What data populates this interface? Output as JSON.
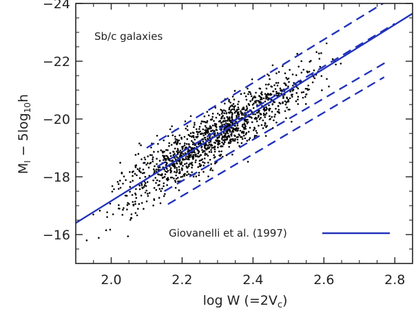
{
  "chart_data": {
    "type": "scatter",
    "xlabel": "log W (=2V",
    "xlabel_sub": "c",
    "xlabel_close": ")",
    "ylabel": "M",
    "ylabel_sub": "I",
    "ylabel_rest": " − 5log",
    "ylabel_sub2": "10",
    "ylabel_end": "h",
    "annotation": "Sb/c galaxies",
    "legend_label": "Giovanelli et al. (1997)",
    "legend_placement": "bottom-right",
    "xlim": [
      1.9,
      2.85
    ],
    "ylim": [
      -15,
      -24
    ],
    "x_ticks": [
      2.0,
      2.2,
      2.4,
      2.6,
      2.8
    ],
    "x_tick_labels": [
      "2.0",
      "2.2",
      "2.4",
      "2.6",
      "2.8"
    ],
    "y_ticks": [
      -16,
      -18,
      -20,
      -22,
      -24
    ],
    "y_tick_labels": [
      "−16",
      "−18",
      "−20",
      "−22",
      "−24"
    ],
    "fit_line": {
      "name": "Giovanelli et al. (1997)",
      "x": [
        1.9,
        2.85
      ],
      "y": [
        -16.4,
        -23.65
      ],
      "color": "#2233bb"
    },
    "dashed_lines": [
      {
        "x": [
          2.1,
          2.78
        ],
        "y": [
          -19.0,
          -24.1
        ]
      },
      {
        "x": [
          2.13,
          2.8
        ],
        "y": [
          -18.35,
          -23.3
        ]
      },
      {
        "x": [
          2.15,
          2.78
        ],
        "y": [
          -17.5,
          -22.0
        ]
      },
      {
        "x": [
          2.16,
          2.77
        ],
        "y": [
          -17.05,
          -21.45
        ]
      }
    ],
    "scatter_summary": {
      "relation": "y = -16.4 - 7.63 * (x - 1.9)",
      "n_points": 1300,
      "x_mean": 2.3,
      "x_sd": 0.13,
      "scatter_sd_mag": 0.45
    },
    "grid": false
  },
  "colors": {
    "line": "#2233bb",
    "points": "#000000",
    "axis": "#222222"
  }
}
